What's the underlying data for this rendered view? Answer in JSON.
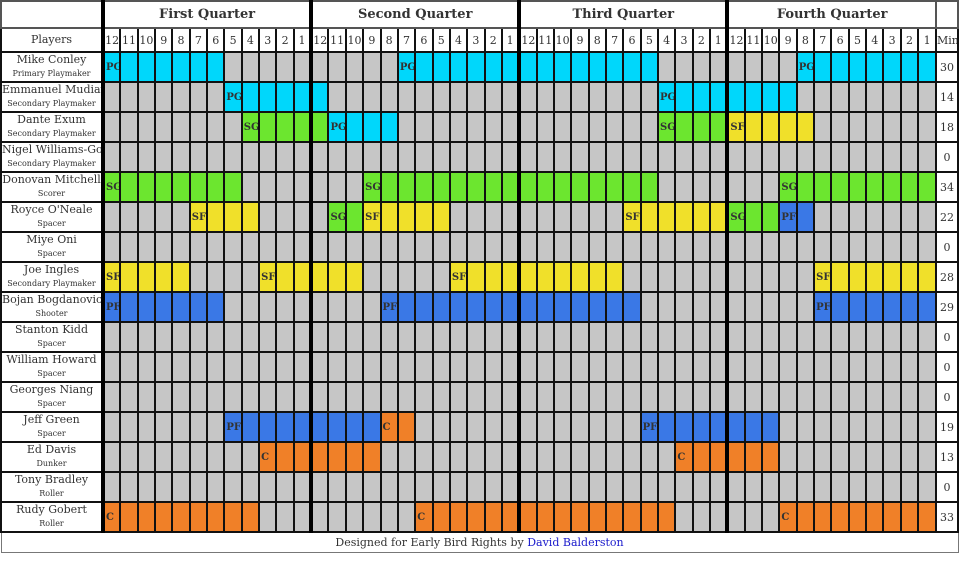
{
  "header": {
    "quarters": [
      "First Quarter",
      "Second Quarter",
      "Third Quarter",
      "Fourth Quarter"
    ],
    "players_label": "Players",
    "minutes": [
      "12",
      "11",
      "10",
      "9",
      "8",
      "7",
      "6",
      "5",
      "4",
      "3",
      "2",
      "1"
    ],
    "min_label": "Min"
  },
  "colors": {
    "PG": "#00d7fb",
    "SG": "#6ce62f",
    "SF": "#f0e02a",
    "PF": "#3a78e6",
    "C": "#f08028",
    "bench": "#c6c6c6"
  },
  "players": [
    {
      "name": "Mike Conley",
      "role": "Primary Playmaker",
      "min": "30",
      "stints": [
        [
          "PG",
          [
            1,
            12
          ],
          [
            1,
            6
          ]
        ],
        [
          "PG",
          [
            2,
            7
          ],
          [
            3,
            5
          ]
        ],
        [
          "PG",
          [
            4,
            8
          ],
          [
            4,
            1
          ]
        ]
      ]
    },
    {
      "name": "Emmanuel Mudiay",
      "role": "Secondary Playmaker",
      "min": "14",
      "stints": [
        [
          "PG",
          [
            1,
            5
          ],
          [
            2,
            12
          ]
        ],
        [
          "PG",
          [
            3,
            4
          ],
          [
            4,
            9
          ]
        ]
      ]
    },
    {
      "name": "Dante Exum",
      "role": "Secondary Playmaker",
      "min": "18",
      "stints": [
        [
          "SG",
          [
            1,
            4
          ],
          [
            2,
            12
          ]
        ],
        [
          "PG",
          [
            2,
            11
          ],
          [
            2,
            8
          ]
        ],
        [
          "SG",
          [
            3,
            4
          ],
          [
            3,
            1
          ]
        ],
        [
          "SF",
          [
            4,
            12
          ],
          [
            4,
            8
          ]
        ]
      ]
    },
    {
      "name": "Nigel Williams-Goss",
      "role": "Secondary Playmaker",
      "min": "0",
      "stints": []
    },
    {
      "name": "Donovan Mitchell",
      "role": "Scorer",
      "min": "34",
      "stints": [
        [
          "SG",
          [
            1,
            12
          ],
          [
            1,
            5
          ]
        ],
        [
          "SG",
          [
            2,
            9
          ],
          [
            3,
            5
          ]
        ],
        [
          "SG",
          [
            4,
            9
          ],
          [
            4,
            1
          ]
        ]
      ]
    },
    {
      "name": "Royce O'Neale",
      "role": "Spacer",
      "min": "22",
      "stints": [
        [
          "SF",
          [
            1,
            7
          ],
          [
            1,
            4
          ]
        ],
        [
          "SG",
          [
            2,
            11
          ],
          [
            2,
            10
          ]
        ],
        [
          "SF",
          [
            2,
            9
          ],
          [
            2,
            5
          ]
        ],
        [
          "SF",
          [
            3,
            6
          ],
          [
            3,
            1
          ]
        ],
        [
          "SG",
          [
            4,
            12
          ],
          [
            4,
            10
          ]
        ],
        [
          "PF",
          [
            4,
            9
          ],
          [
            4,
            8
          ]
        ]
      ]
    },
    {
      "name": "Miye Oni",
      "role": "Spacer",
      "min": "0",
      "stints": []
    },
    {
      "name": "Joe Ingles",
      "role": "Secondary Playmaker",
      "min": "28",
      "stints": [
        [
          "SF",
          [
            1,
            12
          ],
          [
            1,
            8
          ]
        ],
        [
          "SF",
          [
            1,
            3
          ],
          [
            2,
            10
          ]
        ],
        [
          "SF",
          [
            2,
            4
          ],
          [
            3,
            7
          ]
        ],
        [
          "SF",
          [
            4,
            7
          ],
          [
            4,
            1
          ]
        ]
      ]
    },
    {
      "name": "Bojan Bogdanovic",
      "role": "Shooter",
      "min": "29",
      "stints": [
        [
          "PF",
          [
            1,
            12
          ],
          [
            1,
            6
          ]
        ],
        [
          "PF",
          [
            2,
            8
          ],
          [
            3,
            6
          ]
        ],
        [
          "PF",
          [
            4,
            7
          ],
          [
            4,
            1
          ]
        ]
      ]
    },
    {
      "name": "Stanton Kidd",
      "role": "Spacer",
      "min": "0",
      "stints": []
    },
    {
      "name": "William Howard",
      "role": "Spacer",
      "min": "0",
      "stints": []
    },
    {
      "name": "Georges Niang",
      "role": "Spacer",
      "min": "0",
      "stints": []
    },
    {
      "name": "Jeff Green",
      "role": "Spacer",
      "min": "19",
      "stints": [
        [
          "PF",
          [
            1,
            5
          ],
          [
            2,
            9
          ]
        ],
        [
          "C",
          [
            2,
            8
          ],
          [
            2,
            7
          ]
        ],
        [
          "PF",
          [
            3,
            5
          ],
          [
            4,
            10
          ]
        ]
      ]
    },
    {
      "name": "Ed Davis",
      "role": "Dunker",
      "min": "13",
      "stints": [
        [
          "C",
          [
            1,
            3
          ],
          [
            2,
            9
          ]
        ],
        [
          "C",
          [
            3,
            3
          ],
          [
            4,
            10
          ]
        ]
      ]
    },
    {
      "name": "Tony Bradley",
      "role": "Roller",
      "min": "0",
      "stints": []
    },
    {
      "name": "Rudy Gobert",
      "role": "Roller",
      "min": "33",
      "stints": [
        [
          "C",
          [
            1,
            12
          ],
          [
            1,
            4
          ]
        ],
        [
          "C",
          [
            2,
            6
          ],
          [
            3,
            4
          ]
        ],
        [
          "C",
          [
            4,
            9
          ],
          [
            4,
            1
          ]
        ]
      ]
    }
  ],
  "footer": {
    "text": "Designed for Early Bird Rights by ",
    "author": "David Balderston"
  }
}
